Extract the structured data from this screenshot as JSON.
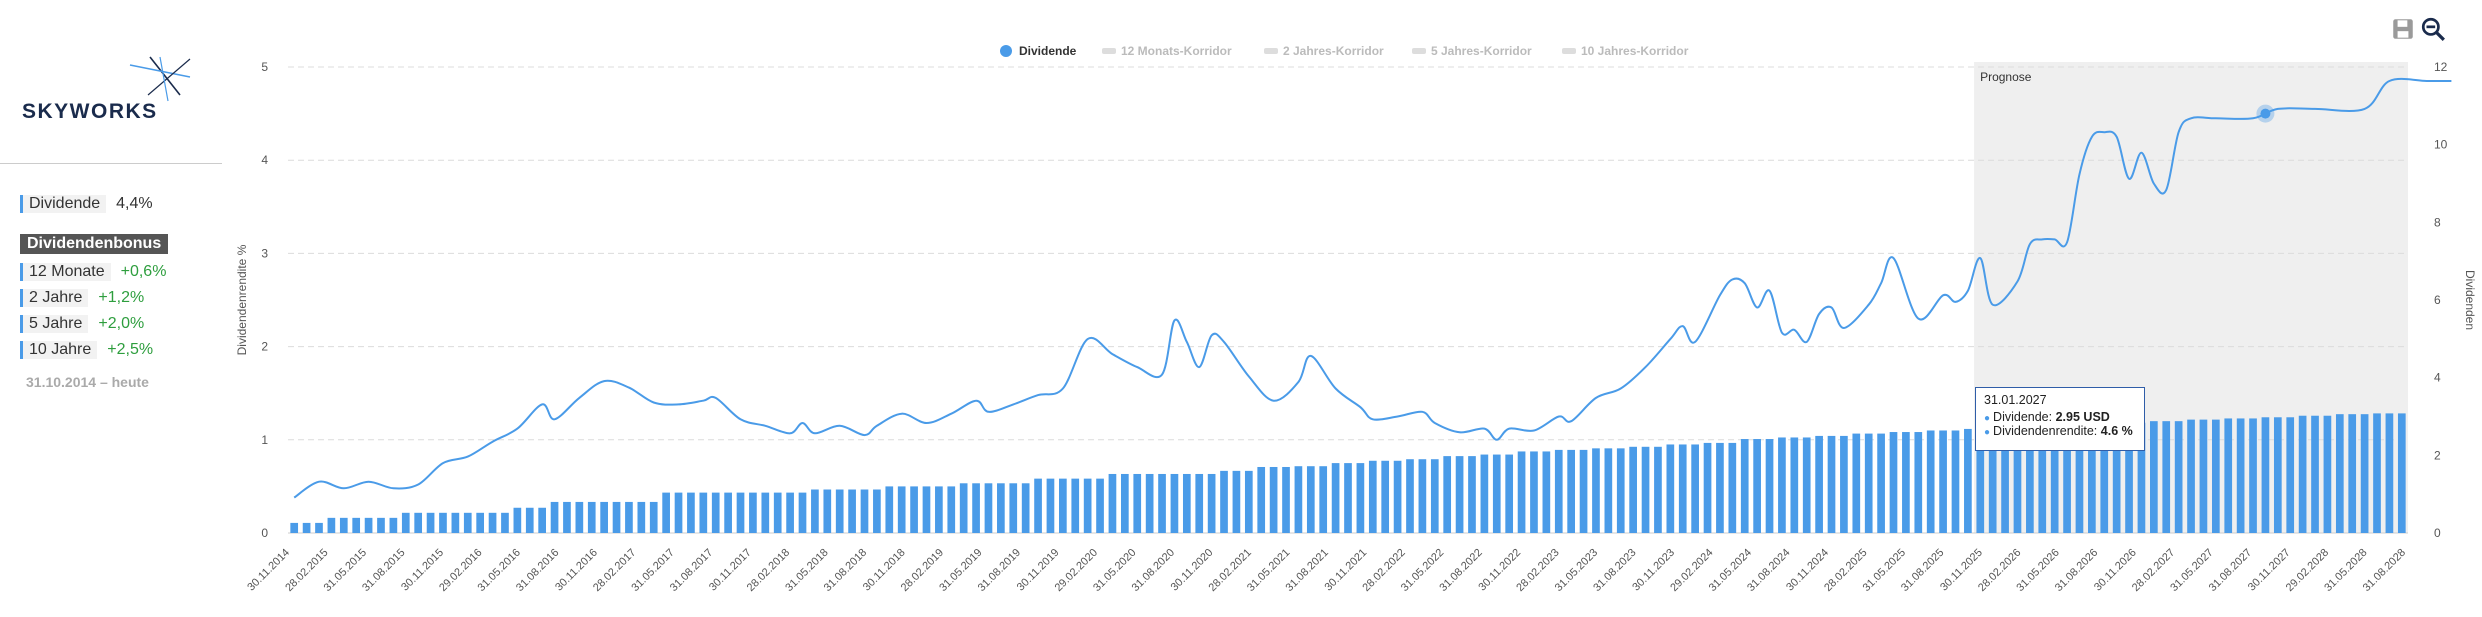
{
  "company": {
    "name": "SKYWORKS"
  },
  "summary": {
    "dividend_label": "Dividende",
    "dividend_value": "4,4%",
    "bonus_title": "Dividendenbonus",
    "bonus_items": [
      {
        "label": "12 Monate",
        "value": "+0,6%"
      },
      {
        "label": "2 Jahre",
        "value": "+1,2%"
      },
      {
        "label": "5 Jahre",
        "value": "+2,0%"
      },
      {
        "label": "10 Jahre",
        "value": "+2,5%"
      }
    ],
    "period": "31.10.2014 – heute"
  },
  "toolbar": {
    "save_icon": "save-icon",
    "zoom_icon": "zoom-out-icon"
  },
  "colors": {
    "accent": "#4a9be8",
    "forecast_bg": "#efefef",
    "positive": "#2e9e3e"
  },
  "tooltip": {
    "date": "31.01.2027",
    "dividend_label": "Dividende:",
    "dividend_value": "2.95 USD",
    "yield_label": "Dividendenrendite:",
    "yield_value": "4.6 %"
  },
  "chart_data": {
    "type": "bar+line",
    "legend": [
      {
        "name": "Dividende",
        "active": true
      },
      {
        "name": "12 Monats-Korridor",
        "active": false
      },
      {
        "name": "2 Jahres-Korridor",
        "active": false
      },
      {
        "name": "5 Jahres-Korridor",
        "active": false
      },
      {
        "name": "10 Jahres-Korridor",
        "active": false
      }
    ],
    "legend_position": "top-center",
    "forecast_label": "Prognose",
    "ylabel_left": "Dividendenrendite %",
    "ylabel_right": "Dividenden",
    "ylim_left": [
      0,
      5
    ],
    "ylim_right": [
      0,
      12
    ],
    "yticks_left": [
      "0",
      "1",
      "2",
      "3",
      "4",
      "5"
    ],
    "yticks_right": [
      "0",
      "2",
      "4",
      "6",
      "8",
      "10",
      "12"
    ],
    "x_tick_labels": [
      "30.11.2014",
      "28.02.2015",
      "31.05.2015",
      "31.08.2015",
      "30.11.2015",
      "29.02.2016",
      "31.05.2016",
      "31.08.2016",
      "30.11.2016",
      "28.02.2017",
      "31.05.2017",
      "31.08.2017",
      "30.11.2017",
      "28.02.2018",
      "31.05.2018",
      "31.08.2018",
      "30.11.2018",
      "28.02.2019",
      "31.05.2019",
      "31.08.2019",
      "30.11.2019",
      "29.02.2020",
      "31.05.2020",
      "31.08.2020",
      "30.11.2020",
      "28.02.2021",
      "31.05.2021",
      "31.08.2021",
      "30.11.2021",
      "28.02.2022",
      "31.05.2022",
      "31.08.2022",
      "30.11.2022",
      "28.02.2023",
      "31.05.2023",
      "31.08.2023",
      "30.11.2023",
      "29.02.2024",
      "31.05.2024",
      "31.08.2024",
      "30.11.2024",
      "28.02.2025",
      "31.05.2025",
      "31.08.2025",
      "30.11.2025",
      "28.02.2026",
      "31.05.2026",
      "31.08.2026",
      "30.11.2026",
      "28.02.2027",
      "31.05.2027",
      "31.08.2027",
      "30.11.2027",
      "29.02.2028",
      "31.05.2028",
      "31.08.2028"
    ],
    "forecast_start_index": 136,
    "dividends": [
      0.26,
      0.26,
      0.26,
      0.39,
      0.39,
      0.39,
      0.39,
      0.39,
      0.39,
      0.52,
      0.52,
      0.52,
      0.52,
      0.52,
      0.52,
      0.52,
      0.52,
      0.52,
      0.65,
      0.65,
      0.65,
      0.8,
      0.8,
      0.8,
      0.8,
      0.8,
      0.8,
      0.8,
      0.8,
      0.8,
      1.04,
      1.04,
      1.04,
      1.04,
      1.04,
      1.04,
      1.04,
      1.04,
      1.04,
      1.04,
      1.04,
      1.04,
      1.12,
      1.12,
      1.12,
      1.12,
      1.12,
      1.12,
      1.2,
      1.2,
      1.2,
      1.2,
      1.2,
      1.2,
      1.28,
      1.28,
      1.28,
      1.28,
      1.28,
      1.28,
      1.4,
      1.4,
      1.4,
      1.4,
      1.4,
      1.4,
      1.52,
      1.52,
      1.52,
      1.52,
      1.52,
      1.52,
      1.52,
      1.52,
      1.52,
      1.6,
      1.6,
      1.6,
      1.7,
      1.7,
      1.7,
      1.72,
      1.72,
      1.72,
      1.8,
      1.8,
      1.8,
      1.86,
      1.86,
      1.86,
      1.9,
      1.9,
      1.9,
      1.98,
      1.98,
      1.98,
      2.02,
      2.02,
      2.02,
      2.1,
      2.1,
      2.1,
      2.14,
      2.14,
      2.14,
      2.18,
      2.18,
      2.18,
      2.22,
      2.22,
      2.22,
      2.28,
      2.28,
      2.28,
      2.32,
      2.32,
      2.32,
      2.42,
      2.42,
      2.42,
      2.46,
      2.46,
      2.46,
      2.5,
      2.5,
      2.5,
      2.56,
      2.56,
      2.56,
      2.6,
      2.6,
      2.6,
      2.64,
      2.64,
      2.64,
      2.68,
      2.68,
      2.68,
      2.72,
      2.72,
      2.72,
      2.76,
      2.76,
      2.76,
      2.8,
      2.8,
      2.8,
      2.84,
      2.84,
      2.84,
      2.88,
      2.88,
      2.88,
      2.92,
      2.92,
      2.92,
      2.95,
      2.95,
      2.95,
      2.98,
      2.98,
      2.98,
      3.02,
      3.02,
      3.02,
      3.06,
      3.06,
      3.06,
      3.08,
      3.08,
      3.08
    ],
    "yield_points": [
      {
        "i": 0,
        "v": 0.38
      },
      {
        "i": 2,
        "v": 0.55
      },
      {
        "i": 4,
        "v": 0.48
      },
      {
        "i": 6,
        "v": 0.55
      },
      {
        "i": 8,
        "v": 0.48
      },
      {
        "i": 10,
        "v": 0.52
      },
      {
        "i": 12,
        "v": 0.75
      },
      {
        "i": 14,
        "v": 0.82
      },
      {
        "i": 16,
        "v": 0.98
      },
      {
        "i": 18,
        "v": 1.12
      },
      {
        "i": 20,
        "v": 1.38
      },
      {
        "i": 21,
        "v": 1.22
      },
      {
        "i": 23,
        "v": 1.45
      },
      {
        "i": 25,
        "v": 1.63
      },
      {
        "i": 27,
        "v": 1.56
      },
      {
        "i": 29,
        "v": 1.4
      },
      {
        "i": 31,
        "v": 1.38
      },
      {
        "i": 33,
        "v": 1.42
      },
      {
        "i": 34,
        "v": 1.45
      },
      {
        "i": 36,
        "v": 1.22
      },
      {
        "i": 38,
        "v": 1.15
      },
      {
        "i": 40,
        "v": 1.07
      },
      {
        "i": 41,
        "v": 1.18
      },
      {
        "i": 42,
        "v": 1.07
      },
      {
        "i": 44,
        "v": 1.15
      },
      {
        "i": 46,
        "v": 1.05
      },
      {
        "i": 47,
        "v": 1.15
      },
      {
        "i": 49,
        "v": 1.28
      },
      {
        "i": 51,
        "v": 1.18
      },
      {
        "i": 53,
        "v": 1.28
      },
      {
        "i": 55,
        "v": 1.42
      },
      {
        "i": 56,
        "v": 1.3
      },
      {
        "i": 58,
        "v": 1.38
      },
      {
        "i": 60,
        "v": 1.48
      },
      {
        "i": 62,
        "v": 1.55
      },
      {
        "i": 64,
        "v": 2.08
      },
      {
        "i": 66,
        "v": 1.92
      },
      {
        "i": 68,
        "v": 1.78
      },
      {
        "i": 70,
        "v": 1.7
      },
      {
        "i": 71,
        "v": 2.28
      },
      {
        "i": 72,
        "v": 2.05
      },
      {
        "i": 73,
        "v": 1.78
      },
      {
        "i": 74,
        "v": 2.12
      },
      {
        "i": 75,
        "v": 2.05
      },
      {
        "i": 77,
        "v": 1.68
      },
      {
        "i": 79,
        "v": 1.42
      },
      {
        "i": 81,
        "v": 1.62
      },
      {
        "i": 82,
        "v": 1.9
      },
      {
        "i": 84,
        "v": 1.55
      },
      {
        "i": 86,
        "v": 1.35
      },
      {
        "i": 87,
        "v": 1.22
      },
      {
        "i": 89,
        "v": 1.25
      },
      {
        "i": 91,
        "v": 1.3
      },
      {
        "i": 92,
        "v": 1.18
      },
      {
        "i": 94,
        "v": 1.08
      },
      {
        "i": 96,
        "v": 1.12
      },
      {
        "i": 97,
        "v": 1.0
      },
      {
        "i": 98,
        "v": 1.12
      },
      {
        "i": 100,
        "v": 1.1
      },
      {
        "i": 102,
        "v": 1.25
      },
      {
        "i": 103,
        "v": 1.2
      },
      {
        "i": 105,
        "v": 1.45
      },
      {
        "i": 107,
        "v": 1.55
      },
      {
        "i": 109,
        "v": 1.78
      },
      {
        "i": 111,
        "v": 2.08
      },
      {
        "i": 112,
        "v": 2.22
      },
      {
        "i": 113,
        "v": 2.05
      },
      {
        "i": 115,
        "v": 2.55
      },
      {
        "i": 116,
        "v": 2.72
      },
      {
        "i": 117,
        "v": 2.68
      },
      {
        "i": 118,
        "v": 2.42
      },
      {
        "i": 119,
        "v": 2.6
      },
      {
        "i": 120,
        "v": 2.15
      },
      {
        "i": 121,
        "v": 2.18
      },
      {
        "i": 122,
        "v": 2.05
      },
      {
        "i": 123,
        "v": 2.35
      },
      {
        "i": 124,
        "v": 2.42
      },
      {
        "i": 125,
        "v": 2.2
      },
      {
        "i": 127,
        "v": 2.45
      },
      {
        "i": 128,
        "v": 2.68
      },
      {
        "i": 129,
        "v": 2.95
      },
      {
        "i": 131,
        "v": 2.3
      },
      {
        "i": 133,
        "v": 2.55
      },
      {
        "i": 134,
        "v": 2.48
      },
      {
        "i": 135,
        "v": 2.6
      },
      {
        "i": 136,
        "v": 2.95
      },
      {
        "i": 137,
        "v": 2.45
      },
      {
        "i": 139,
        "v": 2.7
      },
      {
        "i": 140,
        "v": 3.1
      },
      {
        "i": 141,
        "v": 3.15
      },
      {
        "i": 142,
        "v": 3.15
      },
      {
        "i": 143,
        "v": 3.12
      },
      {
        "i": 144,
        "v": 3.85
      },
      {
        "i": 145,
        "v": 4.25
      },
      {
        "i": 146,
        "v": 4.3
      },
      {
        "i": 147,
        "v": 4.25
      },
      {
        "i": 148,
        "v": 3.8
      },
      {
        "i": 149,
        "v": 4.08
      },
      {
        "i": 150,
        "v": 3.75
      },
      {
        "i": 151,
        "v": 3.68
      },
      {
        "i": 152,
        "v": 4.3
      },
      {
        "i": 153,
        "v": 4.45
      },
      {
        "i": 155,
        "v": 4.45
      },
      {
        "i": 158,
        "v": 4.45
      },
      {
        "i": 160,
        "v": 4.55
      },
      {
        "i": 163,
        "v": 4.55
      },
      {
        "i": 167,
        "v": 4.55
      },
      {
        "i": 169,
        "v": 4.85
      },
      {
        "i": 172,
        "v": 4.85
      },
      {
        "i": 174,
        "v": 4.85
      }
    ],
    "highlight_index": 159
  }
}
